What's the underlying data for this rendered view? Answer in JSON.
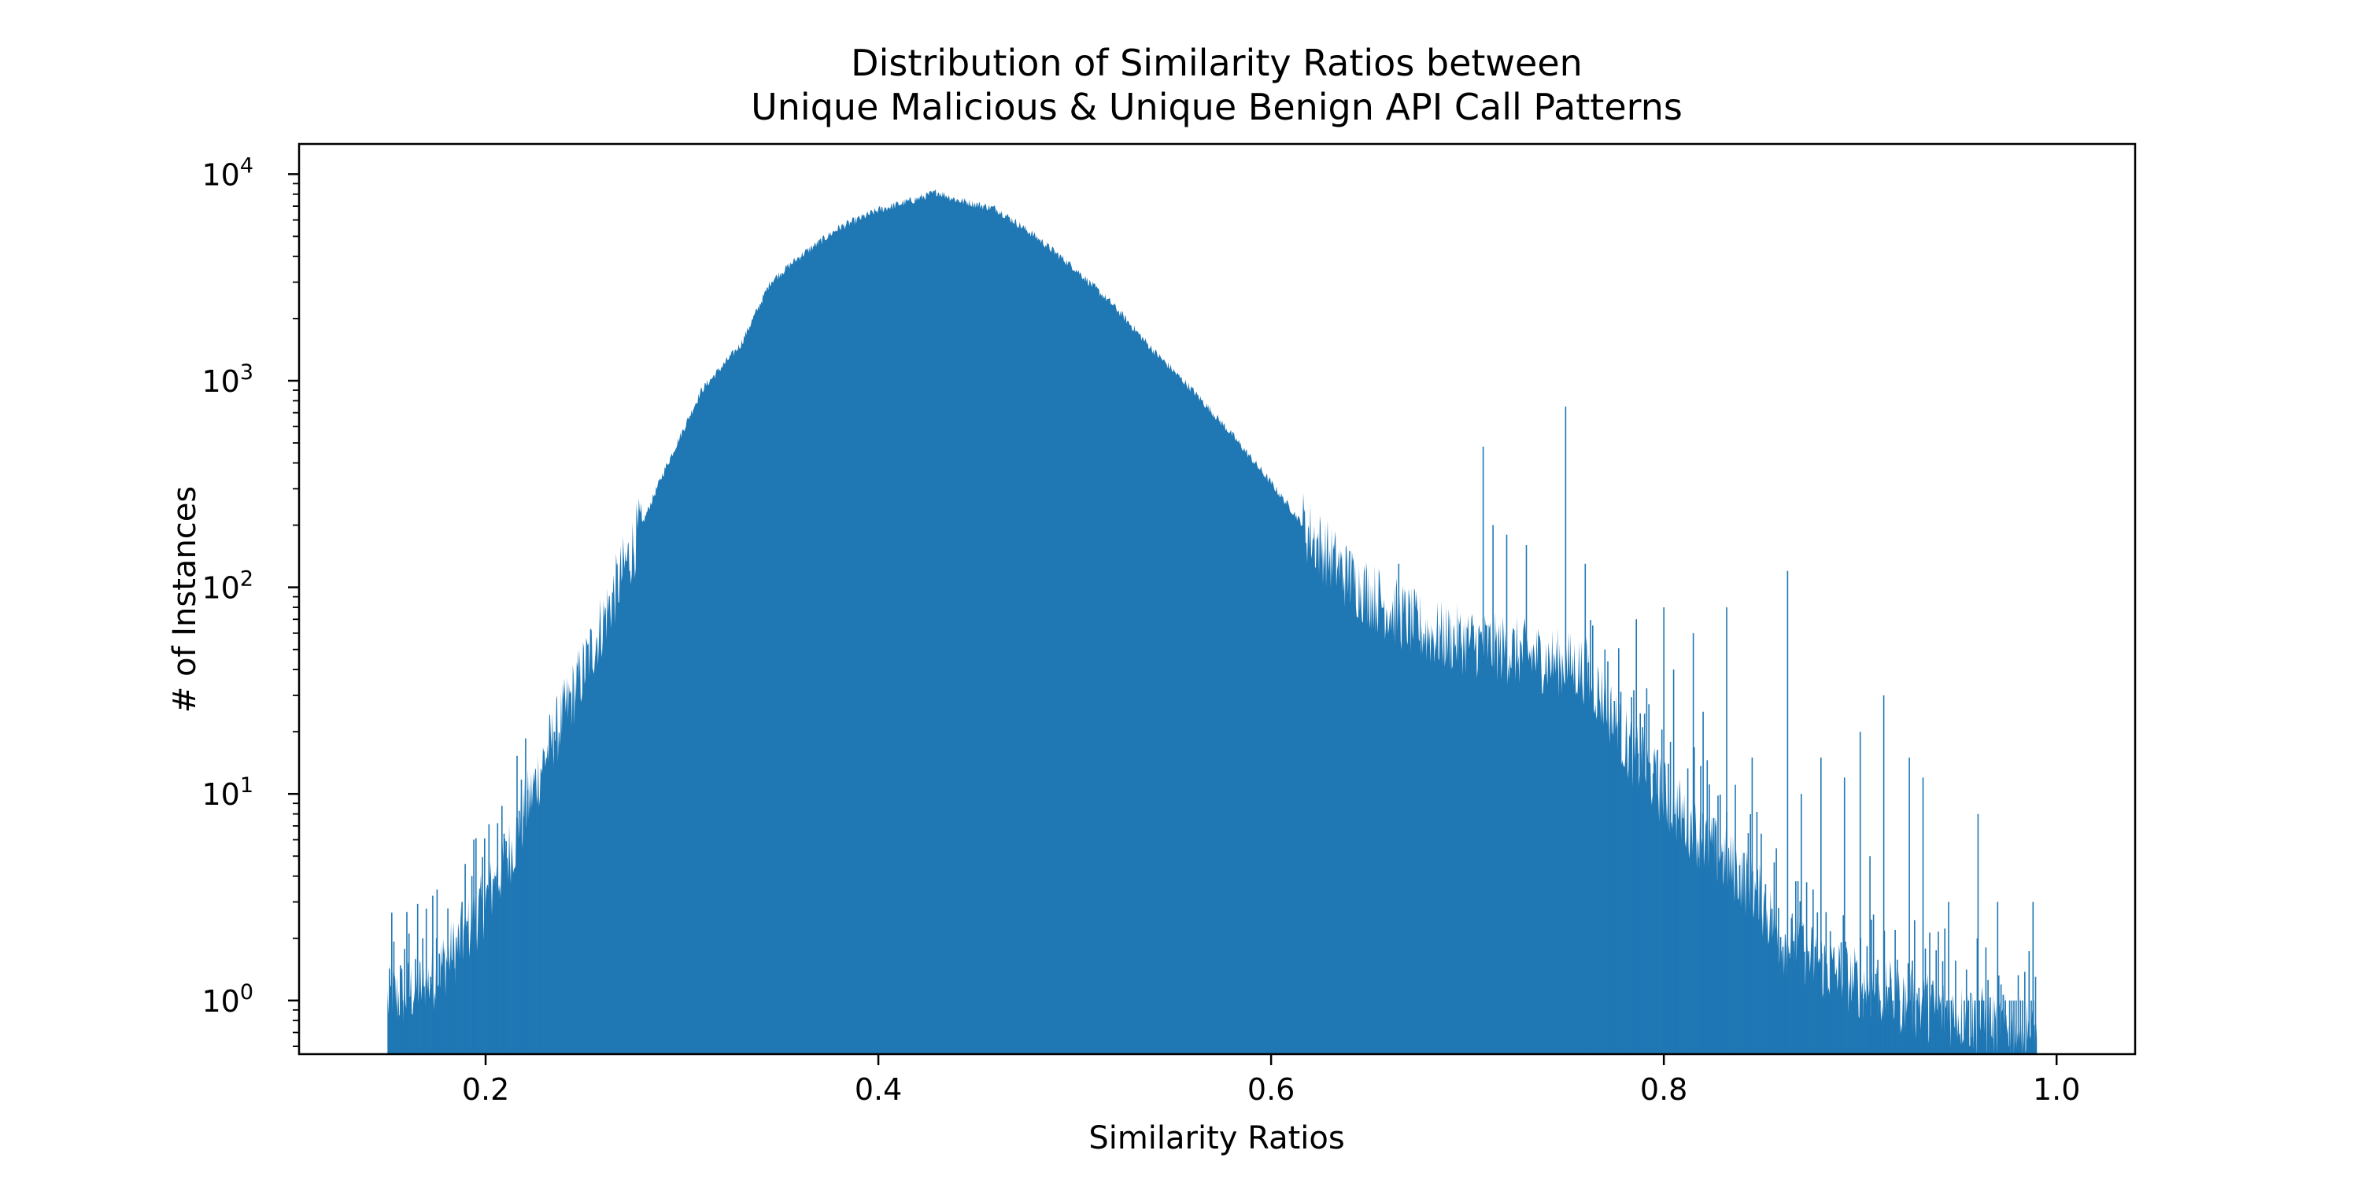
{
  "chart_data": {
    "type": "bar",
    "subtype": "histogram",
    "title_lines": [
      "Distribution of Similarity Ratios between",
      "Unique Malicious & Unique Benign API Call Patterns"
    ],
    "xlabel": "Similarity Ratios",
    "ylabel": "# of Instances",
    "xlim": [
      0.105,
      1.04
    ],
    "ylim": [
      0.55,
      14000
    ],
    "yscale": "log",
    "grid": false,
    "legend": "none",
    "color": "#1f77b4",
    "x_ticks": [
      {
        "value": 0.2,
        "label": "0.2"
      },
      {
        "value": 0.4,
        "label": "0.4"
      },
      {
        "value": 0.6,
        "label": "0.6"
      },
      {
        "value": 0.8,
        "label": "0.8"
      },
      {
        "value": 1.0,
        "label": "1.0"
      }
    ],
    "y_ticks": [
      {
        "value": 1,
        "base": "10",
        "exp": "0"
      },
      {
        "value": 10,
        "base": "10",
        "exp": "1"
      },
      {
        "value": 100,
        "base": "10",
        "exp": "2"
      },
      {
        "value": 1000,
        "base": "10",
        "exp": "3"
      },
      {
        "value": 10000,
        "base": "10",
        "exp": "4"
      }
    ],
    "envelope": {
      "x": [
        0.15,
        0.17,
        0.185,
        0.2,
        0.215,
        0.23,
        0.25,
        0.27,
        0.29,
        0.31,
        0.33,
        0.345,
        0.36,
        0.38,
        0.4,
        0.42,
        0.43,
        0.44,
        0.46,
        0.48,
        0.5,
        0.52,
        0.54,
        0.56,
        0.58,
        0.6,
        0.62,
        0.64,
        0.66,
        0.68,
        0.7,
        0.72,
        0.74,
        0.76,
        0.77,
        0.78,
        0.8,
        0.82,
        0.84,
        0.85,
        0.86,
        0.88,
        0.9,
        0.92,
        0.94,
        0.96,
        0.98,
        0.99
      ],
      "y": [
        1,
        1.2,
        1.8,
        3,
        6,
        15,
        40,
        120,
        350,
        900,
        1500,
        3000,
        4000,
        5500,
        6700,
        7600,
        8200,
        7500,
        6800,
        5000,
        3500,
        2300,
        1400,
        900,
        550,
        320,
        180,
        110,
        80,
        60,
        55,
        50,
        45,
        40,
        28,
        18,
        10,
        6,
        4,
        3,
        2,
        1.5,
        1.2,
        1,
        0.9,
        0.8,
        0.7,
        0.7
      ]
    },
    "spikes": [
      {
        "x": 0.168,
        "y": 2
      },
      {
        "x": 0.175,
        "y": 2
      },
      {
        "x": 0.188,
        "y": 3
      },
      {
        "x": 0.193,
        "y": 4
      },
      {
        "x": 0.205,
        "y": 4
      },
      {
        "x": 0.225,
        "y": 10
      },
      {
        "x": 0.235,
        "y": 20
      },
      {
        "x": 0.64,
        "y": 150
      },
      {
        "x": 0.665,
        "y": 130
      },
      {
        "x": 0.708,
        "y": 480
      },
      {
        "x": 0.713,
        "y": 200
      },
      {
        "x": 0.72,
        "y": 180
      },
      {
        "x": 0.73,
        "y": 160
      },
      {
        "x": 0.75,
        "y": 750
      },
      {
        "x": 0.76,
        "y": 130
      },
      {
        "x": 0.77,
        "y": 50
      },
      {
        "x": 0.786,
        "y": 70
      },
      {
        "x": 0.8,
        "y": 80
      },
      {
        "x": 0.805,
        "y": 40
      },
      {
        "x": 0.815,
        "y": 60
      },
      {
        "x": 0.82,
        "y": 25
      },
      {
        "x": 0.832,
        "y": 80
      },
      {
        "x": 0.845,
        "y": 15
      },
      {
        "x": 0.863,
        "y": 120
      },
      {
        "x": 0.87,
        "y": 10
      },
      {
        "x": 0.88,
        "y": 15
      },
      {
        "x": 0.892,
        "y": 12
      },
      {
        "x": 0.9,
        "y": 20
      },
      {
        "x": 0.905,
        "y": 5
      },
      {
        "x": 0.912,
        "y": 30
      },
      {
        "x": 0.925,
        "y": 15
      },
      {
        "x": 0.932,
        "y": 12
      },
      {
        "x": 0.945,
        "y": 3
      },
      {
        "x": 0.96,
        "y": 8
      },
      {
        "x": 0.97,
        "y": 3
      },
      {
        "x": 0.988,
        "y": 3
      }
    ]
  }
}
